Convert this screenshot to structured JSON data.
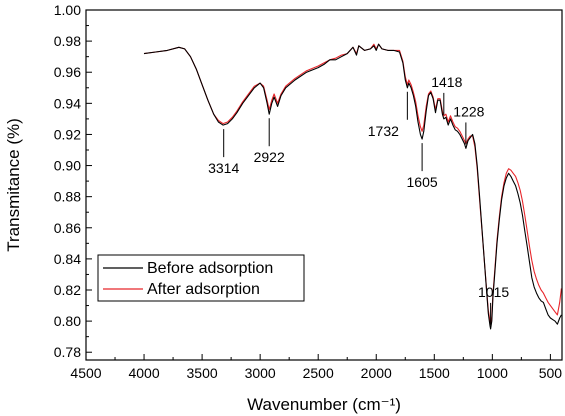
{
  "chart_data": {
    "type": "line",
    "title": "",
    "xlabel": "Wavenumber (cm⁻¹)",
    "ylabel": "Transmitance (%)",
    "xlim": [
      4500,
      400
    ],
    "ylim": [
      0.775,
      1.0
    ],
    "x_reversed": true,
    "x_ticks": [
      4500,
      4000,
      3500,
      3000,
      2500,
      2000,
      1500,
      1000,
      500
    ],
    "y_ticks": [
      0.78,
      0.8,
      0.82,
      0.84,
      0.86,
      0.88,
      0.9,
      0.92,
      0.94,
      0.96,
      0.98,
      1.0
    ],
    "grid": false,
    "legend_position": "bottom-left",
    "series": [
      {
        "name": "Before adsorption",
        "color": "#000000",
        "points": [
          [
            4000,
            0.972
          ],
          [
            3900,
            0.973
          ],
          [
            3800,
            0.974
          ],
          [
            3700,
            0.976
          ],
          [
            3650,
            0.975
          ],
          [
            3600,
            0.97
          ],
          [
            3550,
            0.962
          ],
          [
            3500,
            0.952
          ],
          [
            3450,
            0.942
          ],
          [
            3400,
            0.933
          ],
          [
            3360,
            0.928
          ],
          [
            3320,
            0.926
          ],
          [
            3280,
            0.927
          ],
          [
            3240,
            0.93
          ],
          [
            3200,
            0.934
          ],
          [
            3150,
            0.94
          ],
          [
            3100,
            0.945
          ],
          [
            3050,
            0.95
          ],
          [
            3000,
            0.953
          ],
          [
            2970,
            0.95
          ],
          [
            2940,
            0.94
          ],
          [
            2922,
            0.933
          ],
          [
            2900,
            0.94
          ],
          [
            2880,
            0.944
          ],
          [
            2850,
            0.938
          ],
          [
            2820,
            0.945
          ],
          [
            2780,
            0.95
          ],
          [
            2700,
            0.955
          ],
          [
            2600,
            0.96
          ],
          [
            2500,
            0.963
          ],
          [
            2450,
            0.965
          ],
          [
            2400,
            0.968
          ],
          [
            2350,
            0.968
          ],
          [
            2300,
            0.97
          ],
          [
            2250,
            0.972
          ],
          [
            2200,
            0.976
          ],
          [
            2170,
            0.971
          ],
          [
            2150,
            0.977
          ],
          [
            2100,
            0.974
          ],
          [
            2050,
            0.975
          ],
          [
            2020,
            0.977
          ],
          [
            2000,
            0.974
          ],
          [
            1980,
            0.978
          ],
          [
            1950,
            0.975
          ],
          [
            1900,
            0.974
          ],
          [
            1850,
            0.974
          ],
          [
            1800,
            0.973
          ],
          [
            1770,
            0.966
          ],
          [
            1750,
            0.955
          ],
          [
            1732,
            0.95
          ],
          [
            1720,
            0.953
          ],
          [
            1700,
            0.95
          ],
          [
            1680,
            0.945
          ],
          [
            1660,
            0.938
          ],
          [
            1640,
            0.928
          ],
          [
            1620,
            0.92
          ],
          [
            1605,
            0.917
          ],
          [
            1590,
            0.922
          ],
          [
            1570,
            0.935
          ],
          [
            1550,
            0.945
          ],
          [
            1530,
            0.947
          ],
          [
            1510,
            0.943
          ],
          [
            1490,
            0.934
          ],
          [
            1470,
            0.942
          ],
          [
            1450,
            0.942
          ],
          [
            1430,
            0.933
          ],
          [
            1418,
            0.93
          ],
          [
            1400,
            0.931
          ],
          [
            1380,
            0.926
          ],
          [
            1360,
            0.93
          ],
          [
            1340,
            0.926
          ],
          [
            1320,
            0.923
          ],
          [
            1300,
            0.922
          ],
          [
            1280,
            0.92
          ],
          [
            1260,
            0.917
          ],
          [
            1240,
            0.914
          ],
          [
            1228,
            0.911
          ],
          [
            1210,
            0.916
          ],
          [
            1190,
            0.918
          ],
          [
            1170,
            0.92
          ],
          [
            1150,
            0.914
          ],
          [
            1130,
            0.9
          ],
          [
            1110,
            0.88
          ],
          [
            1090,
            0.86
          ],
          [
            1070,
            0.84
          ],
          [
            1050,
            0.82
          ],
          [
            1035,
            0.805
          ],
          [
            1020,
            0.797
          ],
          [
            1015,
            0.795
          ],
          [
            1005,
            0.8
          ],
          [
            995,
            0.815
          ],
          [
            980,
            0.83
          ],
          [
            960,
            0.85
          ],
          [
            940,
            0.865
          ],
          [
            920,
            0.878
          ],
          [
            900,
            0.887
          ],
          [
            880,
            0.892
          ],
          [
            860,
            0.895
          ],
          [
            840,
            0.893
          ],
          [
            820,
            0.89
          ],
          [
            800,
            0.887
          ],
          [
            780,
            0.882
          ],
          [
            760,
            0.876
          ],
          [
            740,
            0.868
          ],
          [
            720,
            0.858
          ],
          [
            700,
            0.848
          ],
          [
            680,
            0.838
          ],
          [
            660,
            0.828
          ],
          [
            640,
            0.822
          ],
          [
            620,
            0.818
          ],
          [
            600,
            0.815
          ],
          [
            580,
            0.813
          ],
          [
            560,
            0.812
          ],
          [
            540,
            0.808
          ],
          [
            520,
            0.804
          ],
          [
            500,
            0.802
          ],
          [
            480,
            0.801
          ],
          [
            460,
            0.8
          ],
          [
            440,
            0.798
          ],
          [
            420,
            0.802
          ],
          [
            405,
            0.804
          ]
        ]
      },
      {
        "name": "After adsorption",
        "color": "#e8262b",
        "points": [
          [
            4000,
            0.972
          ],
          [
            3900,
            0.973
          ],
          [
            3800,
            0.974
          ],
          [
            3700,
            0.976
          ],
          [
            3650,
            0.975
          ],
          [
            3600,
            0.97
          ],
          [
            3550,
            0.962
          ],
          [
            3500,
            0.952
          ],
          [
            3450,
            0.942
          ],
          [
            3400,
            0.933
          ],
          [
            3360,
            0.929
          ],
          [
            3320,
            0.927
          ],
          [
            3280,
            0.928
          ],
          [
            3240,
            0.931
          ],
          [
            3200,
            0.935
          ],
          [
            3150,
            0.941
          ],
          [
            3100,
            0.946
          ],
          [
            3050,
            0.951
          ],
          [
            3000,
            0.953
          ],
          [
            2970,
            0.951
          ],
          [
            2940,
            0.942
          ],
          [
            2922,
            0.936
          ],
          [
            2900,
            0.942
          ],
          [
            2880,
            0.946
          ],
          [
            2850,
            0.94
          ],
          [
            2820,
            0.946
          ],
          [
            2780,
            0.951
          ],
          [
            2700,
            0.956
          ],
          [
            2600,
            0.961
          ],
          [
            2500,
            0.964
          ],
          [
            2450,
            0.966
          ],
          [
            2400,
            0.968
          ],
          [
            2350,
            0.969
          ],
          [
            2300,
            0.971
          ],
          [
            2250,
            0.972
          ],
          [
            2200,
            0.976
          ],
          [
            2170,
            0.972
          ],
          [
            2150,
            0.977
          ],
          [
            2100,
            0.974
          ],
          [
            2050,
            0.975
          ],
          [
            2020,
            0.978
          ],
          [
            2000,
            0.975
          ],
          [
            1980,
            0.978
          ],
          [
            1950,
            0.975
          ],
          [
            1900,
            0.974
          ],
          [
            1850,
            0.974
          ],
          [
            1800,
            0.974
          ],
          [
            1770,
            0.967
          ],
          [
            1750,
            0.957
          ],
          [
            1732,
            0.952
          ],
          [
            1720,
            0.955
          ],
          [
            1700,
            0.952
          ],
          [
            1680,
            0.947
          ],
          [
            1660,
            0.941
          ],
          [
            1640,
            0.932
          ],
          [
            1620,
            0.925
          ],
          [
            1605,
            0.922
          ],
          [
            1590,
            0.926
          ],
          [
            1570,
            0.938
          ],
          [
            1550,
            0.946
          ],
          [
            1530,
            0.948
          ],
          [
            1510,
            0.944
          ],
          [
            1490,
            0.936
          ],
          [
            1470,
            0.943
          ],
          [
            1450,
            0.943
          ],
          [
            1430,
            0.935
          ],
          [
            1418,
            0.932
          ],
          [
            1400,
            0.933
          ],
          [
            1380,
            0.928
          ],
          [
            1360,
            0.932
          ],
          [
            1340,
            0.928
          ],
          [
            1320,
            0.925
          ],
          [
            1300,
            0.924
          ],
          [
            1280,
            0.922
          ],
          [
            1260,
            0.919
          ],
          [
            1240,
            0.916
          ],
          [
            1228,
            0.914
          ],
          [
            1210,
            0.917
          ],
          [
            1190,
            0.919
          ],
          [
            1170,
            0.919
          ],
          [
            1150,
            0.912
          ],
          [
            1130,
            0.898
          ],
          [
            1110,
            0.878
          ],
          [
            1090,
            0.859
          ],
          [
            1070,
            0.84
          ],
          [
            1050,
            0.821
          ],
          [
            1035,
            0.807
          ],
          [
            1020,
            0.8
          ],
          [
            1015,
            0.798
          ],
          [
            1005,
            0.803
          ],
          [
            995,
            0.817
          ],
          [
            980,
            0.832
          ],
          [
            960,
            0.852
          ],
          [
            940,
            0.867
          ],
          [
            920,
            0.88
          ],
          [
            900,
            0.889
          ],
          [
            880,
            0.895
          ],
          [
            860,
            0.898
          ],
          [
            840,
            0.897
          ],
          [
            820,
            0.895
          ],
          [
            800,
            0.893
          ],
          [
            780,
            0.889
          ],
          [
            760,
            0.884
          ],
          [
            740,
            0.877
          ],
          [
            720,
            0.868
          ],
          [
            700,
            0.858
          ],
          [
            680,
            0.848
          ],
          [
            660,
            0.839
          ],
          [
            640,
            0.832
          ],
          [
            620,
            0.827
          ],
          [
            600,
            0.823
          ],
          [
            580,
            0.82
          ],
          [
            560,
            0.818
          ],
          [
            540,
            0.815
          ],
          [
            520,
            0.812
          ],
          [
            500,
            0.81
          ],
          [
            480,
            0.808
          ],
          [
            460,
            0.806
          ],
          [
            440,
            0.804
          ],
          [
            420,
            0.812
          ],
          [
            405,
            0.821
          ]
        ]
      }
    ],
    "annotations": [
      {
        "label": "3314",
        "x": 3314,
        "peak_y": 0.926,
        "text_side": "below"
      },
      {
        "label": "2922",
        "x": 2922,
        "peak_y": 0.933,
        "text_side": "below"
      },
      {
        "label": "1732",
        "x": 1732,
        "peak_y": 0.95,
        "text_side": "left-below"
      },
      {
        "label": "1605",
        "x": 1605,
        "peak_y": 0.917,
        "text_side": "below"
      },
      {
        "label": "1418",
        "x": 1418,
        "peak_y": 0.93,
        "text_side": "above"
      },
      {
        "label": "1228",
        "x": 1228,
        "peak_y": 0.911,
        "text_side": "above"
      },
      {
        "label": "1015",
        "x": 1015,
        "peak_y": 0.795,
        "text_side": "above"
      }
    ]
  }
}
